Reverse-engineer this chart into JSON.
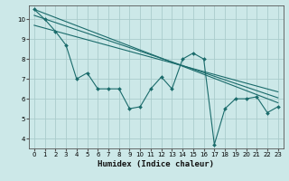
{
  "title": "",
  "xlabel": "Humidex (Indice chaleur)",
  "ylabel": "",
  "bg_color": "#cce8e8",
  "grid_color": "#aacccc",
  "line_color": "#1a6b6b",
  "xlim": [
    -0.5,
    23.5
  ],
  "ylim": [
    3.5,
    10.7
  ],
  "xticks": [
    0,
    1,
    2,
    3,
    4,
    5,
    6,
    7,
    8,
    9,
    10,
    11,
    12,
    13,
    14,
    15,
    16,
    17,
    18,
    19,
    20,
    21,
    22,
    23
  ],
  "yticks": [
    4,
    5,
    6,
    7,
    8,
    9,
    10
  ],
  "series1_x": [
    0,
    1,
    2,
    3,
    4,
    5,
    6,
    7,
    8,
    9,
    10,
    11,
    12,
    13,
    14,
    15,
    16,
    17,
    18,
    19,
    20,
    21,
    22,
    23
  ],
  "series1_y": [
    10.5,
    10.0,
    9.4,
    8.7,
    7.0,
    7.3,
    6.5,
    6.5,
    6.5,
    5.5,
    5.6,
    6.5,
    7.1,
    6.5,
    8.0,
    8.3,
    8.0,
    3.7,
    5.5,
    6.0,
    6.0,
    6.1,
    5.3,
    5.6
  ],
  "trend1_x": [
    0,
    23
  ],
  "trend1_y": [
    10.5,
    5.8
  ],
  "trend2_x": [
    0,
    23
  ],
  "trend2_y": [
    10.2,
    6.05
  ],
  "trend3_x": [
    0,
    23
  ],
  "trend3_y": [
    9.7,
    6.35
  ]
}
